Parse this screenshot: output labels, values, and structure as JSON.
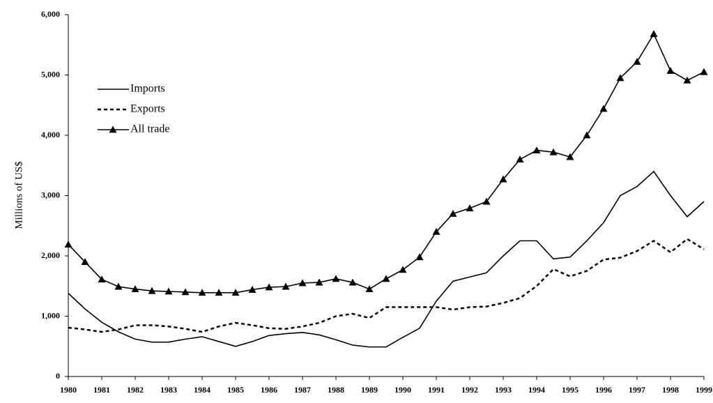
{
  "chart_data": {
    "type": "line",
    "y_label": "Millions of US$",
    "x": [
      1980,
      1980.5,
      1981,
      1981.5,
      1982,
      1982.5,
      1983,
      1983.5,
      1984,
      1984.5,
      1985,
      1985.5,
      1986,
      1986.5,
      1987,
      1987.5,
      1988,
      1988.5,
      1989,
      1989.5,
      1990,
      1990.5,
      1991,
      1991.5,
      1992,
      1992.5,
      1993,
      1993.5,
      1994,
      1994.5,
      1995,
      1995.5,
      1996,
      1996.5,
      1997,
      1997.5,
      1998,
      1998.5,
      1999
    ],
    "series": [
      {
        "name": "Imports",
        "color": "#000000",
        "dash": false,
        "marker": "none",
        "values": [
          1380,
          1120,
          900,
          740,
          620,
          570,
          570,
          620,
          660,
          580,
          500,
          580,
          680,
          710,
          730,
          690,
          610,
          520,
          490,
          490,
          650,
          800,
          1250,
          1580,
          1650,
          1720,
          2000,
          2250,
          2250,
          1950,
          1980,
          2250,
          2550,
          3000,
          3150,
          3400,
          3000,
          2650,
          2900
        ]
      },
      {
        "name": "Exports",
        "color": "#000000",
        "dash": true,
        "marker": "none",
        "values": [
          810,
          780,
          740,
          780,
          850,
          850,
          830,
          790,
          740,
          830,
          890,
          850,
          800,
          790,
          830,
          890,
          1000,
          1040,
          970,
          1150,
          1150,
          1150,
          1150,
          1110,
          1150,
          1160,
          1220,
          1300,
          1500,
          1780,
          1660,
          1750,
          1940,
          1970,
          2080,
          2250,
          2060,
          2280,
          2110
        ]
      },
      {
        "name": "All trade",
        "color": "#000000",
        "dash": false,
        "marker": "triangle",
        "values": [
          2190,
          1900,
          1610,
          1490,
          1450,
          1420,
          1410,
          1400,
          1390,
          1390,
          1390,
          1440,
          1480,
          1490,
          1550,
          1560,
          1620,
          1560,
          1450,
          1620,
          1770,
          1980,
          2400,
          2700,
          2790,
          2900,
          3270,
          3600,
          3750,
          3720,
          3640,
          4000,
          4440,
          4950,
          5220,
          5680,
          5070,
          4910,
          5050
        ]
      }
    ],
    "xlim": [
      1980,
      1999
    ],
    "xticks": [
      1980,
      1981,
      1982,
      1983,
      1984,
      1985,
      1986,
      1987,
      1988,
      1989,
      1990,
      1991,
      1992,
      1993,
      1994,
      1995,
      1996,
      1997,
      1998,
      1999
    ],
    "ylim": [
      0,
      6000
    ],
    "yticks": [
      0,
      {
        "value": 1000,
        "label": "1,000"
      },
      {
        "value": 2000,
        "label": "2,000"
      },
      {
        "value": 3000,
        "label": "3,000"
      },
      {
        "value": 4000,
        "label": "4,000"
      },
      {
        "value": 5000,
        "label": "5,000"
      },
      {
        "value": 6000,
        "label": "6,000"
      }
    ],
    "legend": "upper-left"
  }
}
